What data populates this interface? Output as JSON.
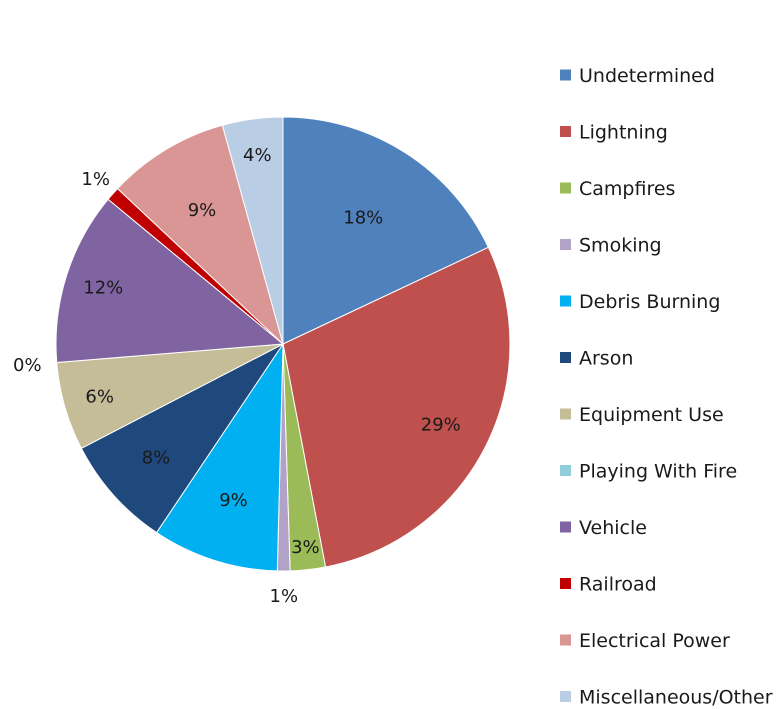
{
  "chart_data": {
    "type": "pie",
    "title": "",
    "legend_position": "right",
    "start_angle_deg": 0,
    "direction": "clockwise",
    "slices": [
      {
        "name": "Undetermined",
        "value": 18.0,
        "label": "18%",
        "color": "#4F81BD"
      },
      {
        "name": "Lightning",
        "value": 29.0,
        "label": "29%",
        "color": "#C0504D"
      },
      {
        "name": "Campfires",
        "value": 2.5,
        "label": "3%",
        "color": "#9BBB59"
      },
      {
        "name": "Smoking",
        "value": 0.9,
        "label": "1%",
        "color": "#B3A2C7"
      },
      {
        "name": "Debris Burning",
        "value": 9.0,
        "label": "9%",
        "color": "#00B0F0"
      },
      {
        "name": "Arson",
        "value": 8.0,
        "label": "8%",
        "color": "#1F497D"
      },
      {
        "name": "Equipment Use",
        "value": 6.3,
        "label": "6%",
        "color": "#C4BD97"
      },
      {
        "name": "Playing With Fire",
        "value": 0.0,
        "label": "0%",
        "color": "#92CDDC"
      },
      {
        "name": "Vehicle",
        "value": 12.3,
        "label": "12%",
        "color": "#8064A2"
      },
      {
        "name": "Railroad",
        "value": 1.0,
        "label": "1%",
        "color": "#C00000"
      },
      {
        "name": "Electrical Power",
        "value": 8.7,
        "label": "9%",
        "color": "#D99694"
      },
      {
        "name": "Miscellaneous/Other",
        "value": 4.3,
        "label": "4%",
        "color": "#B9CDE5"
      }
    ]
  }
}
